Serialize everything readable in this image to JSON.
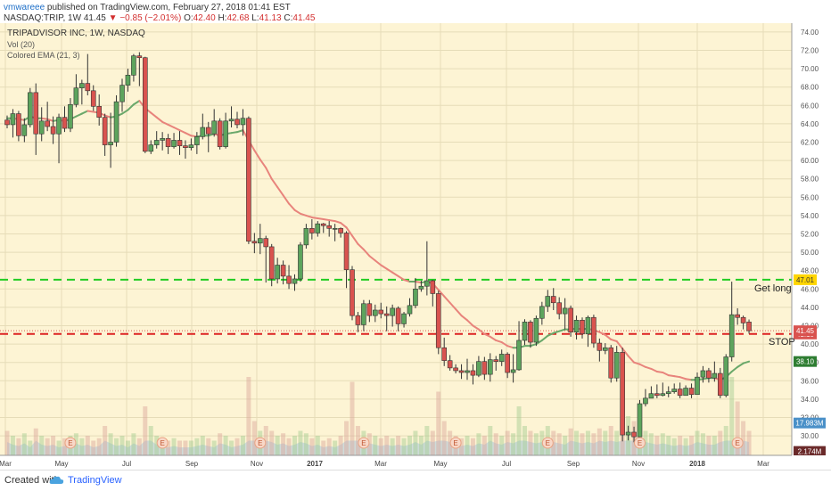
{
  "header": {
    "user": "vmwareee",
    "published": "published on TradingView.com, February 27, 2018 01:41 EST",
    "symbol": "NASDAQ:TRIP, 1W",
    "last": "41.45",
    "change": "−0.85 (−2.01%)",
    "o_label": "O:",
    "o": "42.40",
    "h_label": "H:",
    "h": "42.68",
    "l_label": "L:",
    "l": "41.13",
    "c_label": "C:",
    "c": "41.45"
  },
  "legend": {
    "title": "TRIPADVISOR INC, 1W, NASDAQ",
    "vol": "Vol (20)",
    "ema": "Colored EMA (21, 3)"
  },
  "footer": {
    "created": "Created with",
    "brand": "TradingView"
  },
  "colors": {
    "background": "#fdf4d4",
    "up": "#5da45d",
    "down": "#d9534f",
    "ema_down": "#e8847c",
    "ema_up": "#6aa86a",
    "get_long_line": "#22cc22",
    "stop_line": "#dd2222",
    "volume": "#a9c8de"
  },
  "chart_data": {
    "type": "candlestick",
    "title": "TRIPADVISOR INC, 1W, NASDAQ",
    "ylim": [
      28,
      74
    ],
    "y_ticks": [
      "74.00",
      "72.00",
      "70.00",
      "68.00",
      "66.00",
      "64.00",
      "62.00",
      "60.00",
      "58.00",
      "56.00",
      "54.00",
      "52.00",
      "50.00",
      "48.00",
      "46.00",
      "44.00",
      "42.00",
      "40.00",
      "38.00",
      "36.00",
      "34.00",
      "32.00",
      "30.00"
    ],
    "x_ticks": [
      "Mar",
      "May",
      "Jul",
      "Sep",
      "Nov",
      "2017",
      "Mar",
      "May",
      "Jul",
      "Sep",
      "Nov",
      "2018",
      "Mar"
    ],
    "candles": [
      [
        64.4,
        63.9,
        64.9,
        63.5
      ],
      [
        63.9,
        65.1,
        65.6,
        62.5
      ],
      [
        65.1,
        62.7,
        65.4,
        62.1
      ],
      [
        62.7,
        63.9,
        64.6,
        62.0
      ],
      [
        63.9,
        67.4,
        67.9,
        63.6
      ],
      [
        67.4,
        62.9,
        68.4,
        60.6
      ],
      [
        62.9,
        64.3,
        65.8,
        62.1
      ],
      [
        64.3,
        63.7,
        66.4,
        63.2
      ],
      [
        63.7,
        62.9,
        64.8,
        61.8
      ],
      [
        62.9,
        64.7,
        65.1,
        59.7
      ],
      [
        64.7,
        63.5,
        65.9,
        63.1
      ],
      [
        63.5,
        66.1,
        66.8,
        63.1
      ],
      [
        66.1,
        67.9,
        69.4,
        65.8
      ],
      [
        67.9,
        68.4,
        68.8,
        66.1
      ],
      [
        68.4,
        67.6,
        71.6,
        67.1
      ],
      [
        67.6,
        65.9,
        68.2,
        65.4
      ],
      [
        65.9,
        64.7,
        67.2,
        63.8
      ],
      [
        64.7,
        61.7,
        65.1,
        60.5
      ],
      [
        61.7,
        62.0,
        65.2,
        59.2
      ],
      [
        62.0,
        66.4,
        67.1,
        61.5
      ],
      [
        66.4,
        68.2,
        68.9,
        65.3
      ],
      [
        68.2,
        69.3,
        70.0,
        67.5
      ],
      [
        69.3,
        71.4,
        71.6,
        68.6
      ],
      [
        71.4,
        71.2,
        71.8,
        68.1
      ],
      [
        71.2,
        61.0,
        71.3,
        60.8
      ],
      [
        61.0,
        61.7,
        62.2,
        60.7
      ],
      [
        61.7,
        62.2,
        63.2,
        61.3
      ],
      [
        62.2,
        62.4,
        63.1,
        61.1
      ],
      [
        62.4,
        61.5,
        62.9,
        60.7
      ],
      [
        61.5,
        62.2,
        63.0,
        61.3
      ],
      [
        62.2,
        61.6,
        63.2,
        60.6
      ],
      [
        61.6,
        61.4,
        62.2,
        60.2
      ],
      [
        61.4,
        61.7,
        62.4,
        61.1
      ],
      [
        61.7,
        62.6,
        63.1,
        60.7
      ],
      [
        62.6,
        63.6,
        65.1,
        62.3
      ],
      [
        63.6,
        62.9,
        64.2,
        60.9
      ],
      [
        62.9,
        64.3,
        65.6,
        62.6
      ],
      [
        64.3,
        61.5,
        64.6,
        61.2
      ],
      [
        61.5,
        64.3,
        65.2,
        61.3
      ],
      [
        64.3,
        64.5,
        65.9,
        63.6
      ],
      [
        64.5,
        63.9,
        65.3,
        63.5
      ],
      [
        63.9,
        64.6,
        65.6,
        62.7
      ],
      [
        64.6,
        51.2,
        64.8,
        50.9
      ],
      [
        51.2,
        51.0,
        52.1,
        49.9
      ],
      [
        51.0,
        51.5,
        53.1,
        49.8
      ],
      [
        51.5,
        50.6,
        51.8,
        46.7
      ],
      [
        50.6,
        47.1,
        50.9,
        46.3
      ],
      [
        47.1,
        48.6,
        49.4,
        46.6
      ],
      [
        48.6,
        47.4,
        49.1,
        46.5
      ],
      [
        47.4,
        46.6,
        48.6,
        46.0
      ],
      [
        46.6,
        47.1,
        47.6,
        45.8
      ],
      [
        47.1,
        50.8,
        51.1,
        46.8
      ],
      [
        50.8,
        52.6,
        53.1,
        50.4
      ],
      [
        52.6,
        52.1,
        53.6,
        51.4
      ],
      [
        52.1,
        53.1,
        53.4,
        51.7
      ],
      [
        53.1,
        52.9,
        53.2,
        52.1
      ],
      [
        52.9,
        52.6,
        53.4,
        51.7
      ],
      [
        52.6,
        52.6,
        53.1,
        51.2
      ],
      [
        52.6,
        52.1,
        52.7,
        51.6
      ],
      [
        52.1,
        48.1,
        52.3,
        46.1
      ],
      [
        48.1,
        43.1,
        48.5,
        42.6
      ],
      [
        43.1,
        42.1,
        43.5,
        41.3
      ],
      [
        42.1,
        44.4,
        44.8,
        41.4
      ],
      [
        44.4,
        43.1,
        44.8,
        42.4
      ],
      [
        43.1,
        43.7,
        44.3,
        42.4
      ],
      [
        43.7,
        43.3,
        44.5,
        42.8
      ],
      [
        43.3,
        43.1,
        44.1,
        41.4
      ],
      [
        43.1,
        43.9,
        44.3,
        41.9
      ],
      [
        43.9,
        42.2,
        44.1,
        41.4
      ],
      [
        42.2,
        43.3,
        43.5,
        41.8
      ],
      [
        43.3,
        44.2,
        45.0,
        43.0
      ],
      [
        44.2,
        46.0,
        47.2,
        43.9
      ],
      [
        46.0,
        46.3,
        46.9,
        45.7
      ],
      [
        46.3,
        46.9,
        51.2,
        45.3
      ],
      [
        46.9,
        45.5,
        47.0,
        44.1
      ],
      [
        45.5,
        39.6,
        45.8,
        38.9
      ],
      [
        39.6,
        38.2,
        40.7,
        37.6
      ],
      [
        38.2,
        37.4,
        38.8,
        37.1
      ],
      [
        37.4,
        37.1,
        37.8,
        36.8
      ],
      [
        37.1,
        36.9,
        37.8,
        36.2
      ],
      [
        36.9,
        37.1,
        38.4,
        36.1
      ],
      [
        37.1,
        36.6,
        37.8,
        35.6
      ],
      [
        36.6,
        38.1,
        38.7,
        36.4
      ],
      [
        38.1,
        36.7,
        38.6,
        36.1
      ],
      [
        36.7,
        38.3,
        39.0,
        35.9
      ],
      [
        38.3,
        38.1,
        38.7,
        37.1
      ],
      [
        38.1,
        38.9,
        39.4,
        37.6
      ],
      [
        38.9,
        36.9,
        39.1,
        36.3
      ],
      [
        36.9,
        37.2,
        38.9,
        35.8
      ],
      [
        37.2,
        40.4,
        42.5,
        37.1
      ],
      [
        40.4,
        42.4,
        42.7,
        39.9
      ],
      [
        42.4,
        40.2,
        42.6,
        39.6
      ],
      [
        40.2,
        42.8,
        43.1,
        39.8
      ],
      [
        42.8,
        44.1,
        44.6,
        42.1
      ],
      [
        44.1,
        45.2,
        45.9,
        43.5
      ],
      [
        45.2,
        44.5,
        46.1,
        43.7
      ],
      [
        44.5,
        43.3,
        45.1,
        42.7
      ],
      [
        43.3,
        43.9,
        45.0,
        41.6
      ],
      [
        43.9,
        41.3,
        44.2,
        40.8
      ],
      [
        41.3,
        42.6,
        43.1,
        40.5
      ],
      [
        42.6,
        41.1,
        42.9,
        40.6
      ],
      [
        41.1,
        42.9,
        43.1,
        39.7
      ],
      [
        42.9,
        40.1,
        43.2,
        39.6
      ],
      [
        40.1,
        39.3,
        40.6,
        38.1
      ],
      [
        39.3,
        39.6,
        40.1,
        38.9
      ],
      [
        39.6,
        36.3,
        39.9,
        35.8
      ],
      [
        36.3,
        39.1,
        39.8,
        35.9
      ],
      [
        39.1,
        30.1,
        39.6,
        29.4
      ],
      [
        30.1,
        30.4,
        31.1,
        29.5
      ],
      [
        30.4,
        29.9,
        31.0,
        29.3
      ],
      [
        29.9,
        33.5,
        33.9,
        29.6
      ],
      [
        33.5,
        34.1,
        35.1,
        33.2
      ],
      [
        34.1,
        34.6,
        35.4,
        34.1
      ],
      [
        34.6,
        34.4,
        35.6,
        34.1
      ],
      [
        34.4,
        34.6,
        35.8,
        34.3
      ],
      [
        34.6,
        34.8,
        35.4,
        34.2
      ],
      [
        34.8,
        35.1,
        35.7,
        34.6
      ],
      [
        35.1,
        34.4,
        35.8,
        34.1
      ],
      [
        34.4,
        35.2,
        35.5,
        34.6
      ],
      [
        35.2,
        34.5,
        35.7,
        34.1
      ],
      [
        34.5,
        36.4,
        36.9,
        34.6
      ],
      [
        36.4,
        37.1,
        37.6,
        35.8
      ],
      [
        37.1,
        36.3,
        37.4,
        35.8
      ],
      [
        36.3,
        36.8,
        38.1,
        35.9
      ],
      [
        36.8,
        34.4,
        37.4,
        34.1
      ],
      [
        34.4,
        38.6,
        38.9,
        34.2
      ],
      [
        38.6,
        43.2,
        46.8,
        38.1
      ],
      [
        43.2,
        42.9,
        43.9,
        42.1
      ],
      [
        42.9,
        42.3,
        43.1,
        41.6
      ],
      [
        42.4,
        41.45,
        42.68,
        41.13
      ]
    ],
    "ema": [
      64.6,
      64.6,
      64.5,
      64.4,
      64.8,
      64.6,
      64.6,
      64.5,
      64.3,
      64.4,
      64.3,
      64.5,
      64.8,
      65.1,
      65.4,
      65.3,
      65.2,
      64.9,
      64.7,
      64.8,
      65.1,
      65.5,
      66.1,
      66.5,
      65.7,
      65.2,
      64.7,
      64.2,
      63.9,
      63.6,
      63.3,
      63.0,
      62.7,
      62.6,
      62.7,
      62.7,
      62.9,
      62.7,
      62.9,
      63.0,
      63.1,
      63.3,
      62.2,
      61.1,
      60.1,
      59.2,
      58.0,
      57.1,
      56.2,
      55.3,
      54.6,
      54.2,
      54.0,
      53.8,
      53.7,
      53.6,
      53.5,
      53.4,
      53.2,
      52.7,
      51.8,
      50.9,
      50.3,
      49.6,
      49.1,
      48.6,
      48.2,
      47.8,
      47.4,
      47.0,
      46.8,
      46.8,
      46.7,
      46.8,
      46.6,
      45.9,
      45.2,
      44.5,
      43.8,
      43.1,
      42.6,
      42.0,
      41.6,
      41.1,
      40.8,
      40.4,
      40.2,
      39.8,
      39.6,
      39.6,
      39.8,
      39.8,
      40.0,
      40.4,
      40.9,
      41.2,
      41.4,
      41.6,
      41.6,
      41.7,
      41.6,
      41.7,
      41.5,
      41.3,
      41.0,
      40.5,
      40.3,
      39.5,
      38.7,
      38.0,
      37.8,
      37.5,
      37.3,
      37.0,
      36.9,
      36.6,
      36.5,
      36.4,
      36.2,
      36.1,
      36.1,
      36.2,
      36.3,
      36.3,
      36.1,
      36.4,
      37.0,
      37.5,
      37.9,
      38.1
    ],
    "volume": [
      0.5,
      0.4,
      0.35,
      0.45,
      0.3,
      0.55,
      0.4,
      0.35,
      0.4,
      0.3,
      0.35,
      0.4,
      0.45,
      0.35,
      0.4,
      0.3,
      0.35,
      0.6,
      0.45,
      0.35,
      0.4,
      0.3,
      0.45,
      0.35,
      1.0,
      0.6,
      0.4,
      0.35,
      0.3,
      0.35,
      0.3,
      0.3,
      0.3,
      0.35,
      0.4,
      0.35,
      0.3,
      0.45,
      0.4,
      0.3,
      0.35,
      0.4,
      1.6,
      0.7,
      0.5,
      0.6,
      0.5,
      0.4,
      0.45,
      0.35,
      0.4,
      0.5,
      0.45,
      0.35,
      0.4,
      0.3,
      0.35,
      0.3,
      0.4,
      0.7,
      1.5,
      0.6,
      0.5,
      0.45,
      0.4,
      0.35,
      0.4,
      0.35,
      0.4,
      0.35,
      0.4,
      0.5,
      0.4,
      0.6,
      0.5,
      1.3,
      0.7,
      0.5,
      0.4,
      0.35,
      0.4,
      0.35,
      0.45,
      0.4,
      0.6,
      0.45,
      0.4,
      0.5,
      0.45,
      1.0,
      0.6,
      0.5,
      0.45,
      0.5,
      0.6,
      0.5,
      0.45,
      0.4,
      0.55,
      0.5,
      0.45,
      0.5,
      0.45,
      0.55,
      0.5,
      0.6,
      0.5,
      1.7,
      0.8,
      0.7,
      0.6,
      0.5,
      0.45,
      0.4,
      0.45,
      0.4,
      0.35,
      0.4,
      0.35,
      0.4,
      0.5,
      0.45,
      0.4,
      0.4,
      0.5,
      0.6,
      1.6,
      1.1,
      0.7,
      0.5
    ],
    "volume_avg_max": 0.55,
    "earnings_marker": "E",
    "h_lines": [
      {
        "label": "Get long",
        "price": 47.01,
        "price_label": "47.01",
        "style": "dashed",
        "color": "#22cc22"
      },
      {
        "label": "STOP",
        "price": 41.1,
        "price_label": "41.10",
        "style": "dashed",
        "color": "#dd2222"
      }
    ],
    "price_labels": [
      {
        "text": "41.45",
        "price": 41.45,
        "color": "#d9534f"
      },
      {
        "text": "38.10",
        "price": 38.1,
        "color": "#2e7d32"
      },
      {
        "text": "17.983M",
        "price": 31.4,
        "color": "#4a90c8"
      },
      {
        "text": "2.174M",
        "price": 28.3,
        "color": "#6b2a2a"
      }
    ]
  }
}
